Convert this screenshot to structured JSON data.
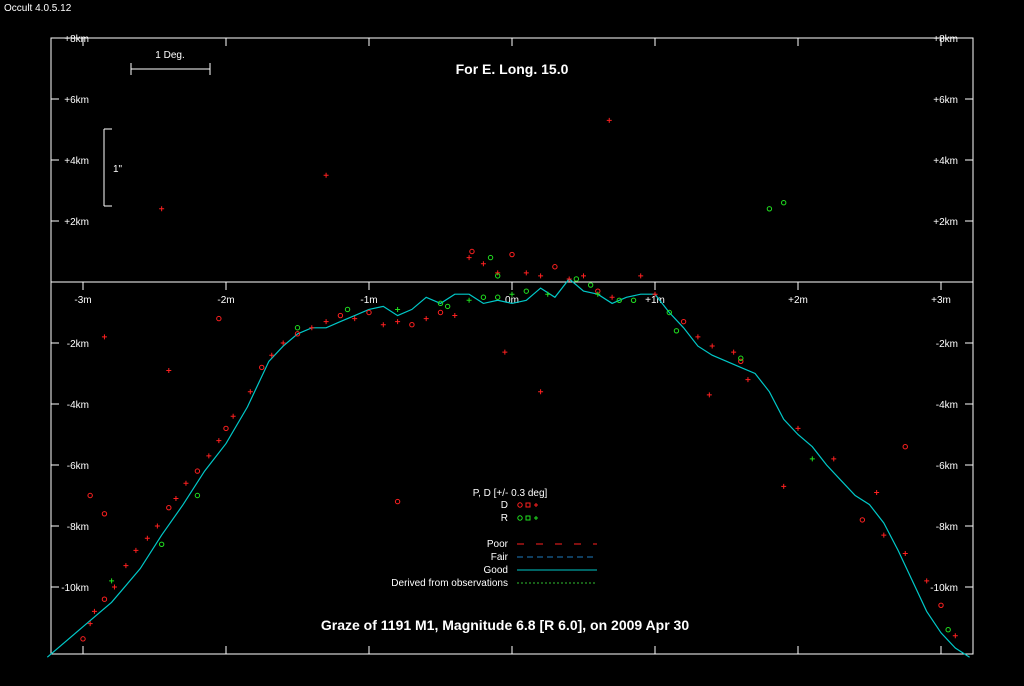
{
  "app": {
    "title": "Occult 4.0.5.12"
  },
  "chart_data": {
    "type": "scatter",
    "title": "For E. Long. 15.0",
    "subtitle": "Graze of  1191 M1,  Magnitude 6.8 [R 6.0],  on 2009 Apr 30",
    "x_range_minutes": [
      -3.25,
      3.2
    ],
    "y_range_km": [
      -12.3,
      8
    ],
    "x_ticks": [
      "-3m",
      "-2m",
      "-1m",
      "0m",
      "+1m",
      "+2m",
      "+3m"
    ],
    "x_tick_values": [
      -3,
      -2,
      -1,
      0,
      1,
      2,
      3
    ],
    "y_ticks_upper": [
      "+8km",
      "+6km",
      "+4km",
      "+2km"
    ],
    "y_ticks_upper_values": [
      8,
      6,
      4,
      2
    ],
    "y_ticks_lower": [
      "-2km",
      "-4km",
      "-6km",
      "-8km",
      "-10km"
    ],
    "y_ticks_lower_values": [
      -2,
      -4,
      -6,
      -8,
      -10
    ],
    "scale": {
      "deg_label": "1 Deg.",
      "arcsec_label": "1\""
    },
    "legend": {
      "pd_title": "P, D [+/- 0.3 deg]",
      "d_label": "D",
      "r_label": "R",
      "d_symbols": "o □ +",
      "r_symbols": "o □ +",
      "poor": "Poor",
      "fair": "Fair",
      "good": "Good",
      "derived": "Derived from observations"
    },
    "colors": {
      "background": "#000000",
      "axes": "#ffffff",
      "profile": "#00c8c8",
      "d_marks": "#ff2020",
      "r_marks": "#20e020",
      "fair_line": "#1e7bc0",
      "derived_line": "#30c030"
    },
    "profile": {
      "x": [
        -3.25,
        -3.0,
        -2.8,
        -2.6,
        -2.45,
        -2.3,
        -2.15,
        -2.0,
        -1.85,
        -1.7,
        -1.6,
        -1.5,
        -1.4,
        -1.3,
        -1.2,
        -1.1,
        -1.0,
        -0.9,
        -0.8,
        -0.7,
        -0.6,
        -0.5,
        -0.4,
        -0.3,
        -0.2,
        -0.1,
        0.0,
        0.1,
        0.2,
        0.3,
        0.4,
        0.5,
        0.6,
        0.7,
        0.8,
        0.9,
        1.0,
        1.1,
        1.2,
        1.3,
        1.4,
        1.5,
        1.6,
        1.7,
        1.8,
        1.9,
        2.0,
        2.1,
        2.2,
        2.3,
        2.4,
        2.5,
        2.6,
        2.7,
        2.8,
        2.9,
        3.0,
        3.1,
        3.2
      ],
      "y": [
        -12.3,
        -11.3,
        -10.5,
        -9.4,
        -8.3,
        -7.3,
        -6.2,
        -5.3,
        -4.1,
        -2.6,
        -2.1,
        -1.7,
        -1.5,
        -1.5,
        -1.3,
        -1.1,
        -0.9,
        -0.8,
        -1.1,
        -0.9,
        -0.5,
        -0.7,
        -0.4,
        -0.4,
        -0.7,
        -0.6,
        -0.7,
        -0.6,
        -0.2,
        -0.5,
        0.1,
        -0.3,
        -0.4,
        -0.7,
        -0.5,
        -0.4,
        -0.4,
        -1.0,
        -1.5,
        -2.1,
        -2.4,
        -2.6,
        -2.8,
        -3.0,
        -3.6,
        -4.5,
        -5.0,
        -5.4,
        -6.0,
        -6.5,
        -7.0,
        -7.3,
        -7.9,
        -8.8,
        -9.8,
        -10.8,
        -11.5,
        -12.0,
        -12.3
      ]
    },
    "series": [
      {
        "name": "D",
        "points": [
          [
            -2.45,
            2.4,
            "+"
          ],
          [
            -1.3,
            3.5,
            "+"
          ],
          [
            0.68,
            5.3,
            "+"
          ],
          [
            -2.85,
            -1.8,
            "+"
          ],
          [
            -2.4,
            -2.9,
            "+"
          ],
          [
            -2.05,
            -1.2,
            "o"
          ],
          [
            -3.0,
            -11.7,
            "o"
          ],
          [
            -2.95,
            -11.2,
            "+"
          ],
          [
            -2.92,
            -10.8,
            "+"
          ],
          [
            -2.85,
            -10.4,
            "o"
          ],
          [
            -2.78,
            -10.0,
            "+"
          ],
          [
            -2.7,
            -9.3,
            "+"
          ],
          [
            -2.63,
            -8.8,
            "+"
          ],
          [
            -2.55,
            -8.4,
            "+"
          ],
          [
            -2.48,
            -8.0,
            "+"
          ],
          [
            -2.4,
            -7.4,
            "o"
          ],
          [
            -2.35,
            -7.1,
            "+"
          ],
          [
            -2.28,
            -6.6,
            "+"
          ],
          [
            -2.2,
            -6.2,
            "o"
          ],
          [
            -2.12,
            -5.7,
            "+"
          ],
          [
            -2.05,
            -5.2,
            "+"
          ],
          [
            -2.0,
            -4.8,
            "o"
          ],
          [
            -1.95,
            -4.4,
            "+"
          ],
          [
            -1.83,
            -3.6,
            "+"
          ],
          [
            -1.75,
            -2.8,
            "o"
          ],
          [
            -1.68,
            -2.4,
            "+"
          ],
          [
            -1.6,
            -2.0,
            "+"
          ],
          [
            -1.5,
            -1.7,
            "o"
          ],
          [
            -1.4,
            -1.5,
            "+"
          ],
          [
            -1.3,
            -1.3,
            "+"
          ],
          [
            -1.2,
            -1.1,
            "o"
          ],
          [
            -1.1,
            -1.2,
            "+"
          ],
          [
            -1.0,
            -1.0,
            "o"
          ],
          [
            -0.9,
            -1.4,
            "+"
          ],
          [
            -0.8,
            -1.3,
            "+"
          ],
          [
            -0.7,
            -1.4,
            "o"
          ],
          [
            -0.6,
            -1.2,
            "+"
          ],
          [
            -0.5,
            -1.0,
            "o"
          ],
          [
            -0.4,
            -1.1,
            "+"
          ],
          [
            -0.3,
            0.8,
            "+"
          ],
          [
            -0.28,
            1.0,
            "o"
          ],
          [
            -0.2,
            0.6,
            "+"
          ],
          [
            -0.1,
            0.3,
            "+"
          ],
          [
            0.0,
            0.9,
            "o"
          ],
          [
            0.1,
            0.3,
            "+"
          ],
          [
            0.2,
            0.2,
            "+"
          ],
          [
            0.3,
            0.5,
            "o"
          ],
          [
            0.4,
            0.1,
            "+"
          ],
          [
            0.5,
            0.2,
            "+"
          ],
          [
            0.6,
            -0.3,
            "o"
          ],
          [
            0.7,
            -0.5,
            "+"
          ],
          [
            0.9,
            0.2,
            "+"
          ],
          [
            1.0,
            -0.4,
            "+"
          ],
          [
            1.2,
            -1.3,
            "o"
          ],
          [
            1.3,
            -1.8,
            "+"
          ],
          [
            1.4,
            -2.1,
            "+"
          ],
          [
            1.55,
            -2.3,
            "+"
          ],
          [
            1.6,
            -2.6,
            "o"
          ],
          [
            1.65,
            -3.2,
            "+"
          ],
          [
            1.38,
            -3.7,
            "+"
          ],
          [
            2.0,
            -4.8,
            "+"
          ],
          [
            2.25,
            -5.8,
            "+"
          ],
          [
            2.55,
            -6.9,
            "+"
          ],
          [
            1.9,
            -6.7,
            "+"
          ],
          [
            2.45,
            -7.8,
            "o"
          ],
          [
            2.6,
            -8.3,
            "+"
          ],
          [
            2.75,
            -8.9,
            "+"
          ],
          [
            2.9,
            -9.8,
            "+"
          ],
          [
            3.0,
            -10.6,
            "o"
          ],
          [
            3.1,
            -11.6,
            "+"
          ],
          [
            2.75,
            -5.4,
            "o"
          ],
          [
            -0.8,
            -7.2,
            "o"
          ],
          [
            -0.05,
            -2.3,
            "+"
          ],
          [
            0.2,
            -3.6,
            "+"
          ],
          [
            -2.95,
            -7.0,
            "o"
          ],
          [
            -2.85,
            -7.6,
            "o"
          ]
        ]
      },
      {
        "name": "R",
        "points": [
          [
            1.8,
            2.4,
            "o"
          ],
          [
            1.9,
            2.6,
            "o"
          ],
          [
            -0.15,
            0.8,
            "o"
          ],
          [
            -0.1,
            0.2,
            "o"
          ],
          [
            -1.15,
            -0.9,
            "o"
          ],
          [
            -0.8,
            -0.9,
            "+"
          ],
          [
            -0.5,
            -0.7,
            "o"
          ],
          [
            -0.45,
            -0.8,
            "o"
          ],
          [
            -0.3,
            -0.6,
            "+"
          ],
          [
            -0.2,
            -0.5,
            "o"
          ],
          [
            -0.1,
            -0.5,
            "o"
          ],
          [
            0.0,
            -0.4,
            "+"
          ],
          [
            0.1,
            -0.3,
            "o"
          ],
          [
            0.25,
            -0.4,
            "+"
          ],
          [
            0.45,
            0.1,
            "o"
          ],
          [
            0.55,
            -0.1,
            "o"
          ],
          [
            0.6,
            -0.4,
            "+"
          ],
          [
            0.75,
            -0.6,
            "o"
          ],
          [
            0.85,
            -0.6,
            "o"
          ],
          [
            1.1,
            -1.0,
            "o"
          ],
          [
            1.15,
            -1.6,
            "o"
          ],
          [
            1.6,
            -2.5,
            "o"
          ],
          [
            2.1,
            -5.8,
            "+"
          ],
          [
            -2.8,
            -9.8,
            "+"
          ],
          [
            -2.45,
            -8.6,
            "o"
          ],
          [
            -2.2,
            -7.0,
            "o"
          ],
          [
            3.05,
            -11.4,
            "o"
          ],
          [
            -1.5,
            -1.5,
            "o"
          ]
        ]
      }
    ]
  }
}
